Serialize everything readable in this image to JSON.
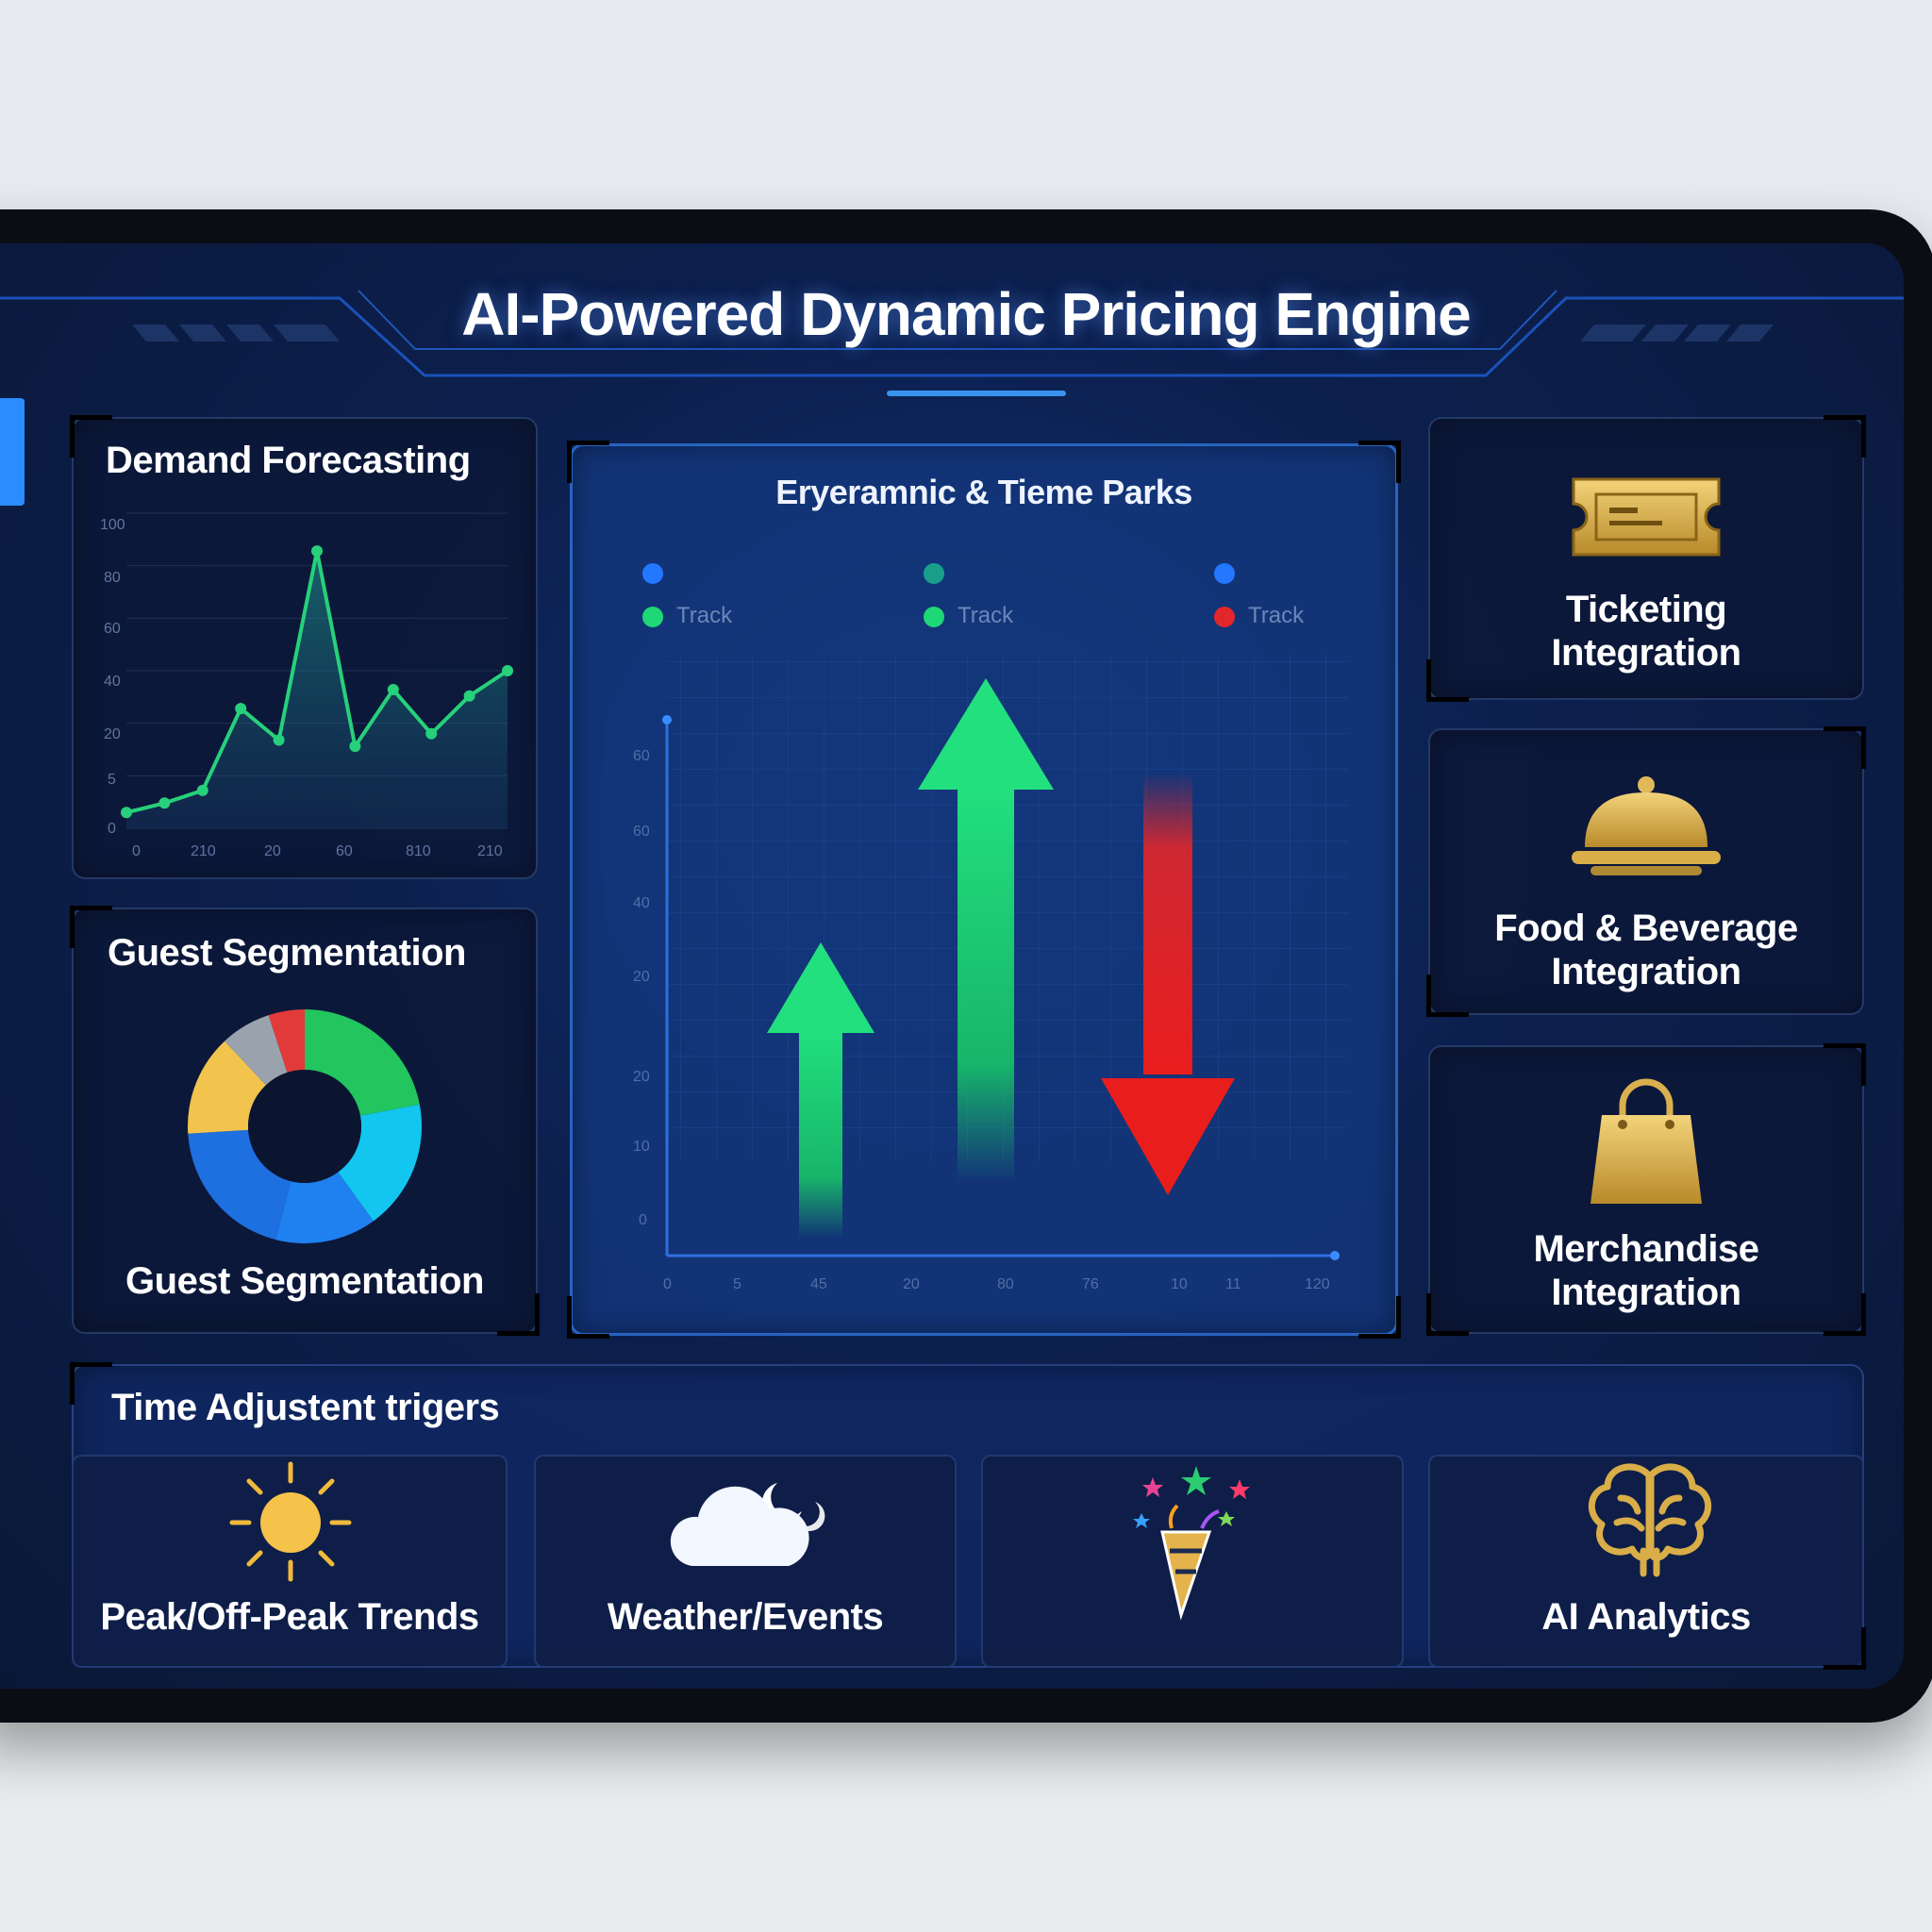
{
  "app": {
    "title": "AI-Powered Dynamic Pricing Engine"
  },
  "demand_forecasting": {
    "title": "Demand Forecasting",
    "y_ticks": [
      "100",
      "80",
      "60",
      "40",
      "20",
      "5",
      "0"
    ],
    "x_ticks": [
      "0",
      "210",
      "20",
      "60",
      "810",
      "210"
    ]
  },
  "guest_segmentation": {
    "title": "Guest Segmentation",
    "caption": "Guest Segmentation"
  },
  "center_chart": {
    "title": "Eryeramnic & Tieme Parks",
    "legend": [
      {
        "label": "Track",
        "color": "#1ed776"
      },
      {
        "label": "Track",
        "color": "#1ed776"
      },
      {
        "label": "Track",
        "color": "#e3262a"
      }
    ],
    "y_ticks": [
      "60",
      "60",
      "40",
      "20",
      "20",
      "10",
      "0"
    ],
    "x_ticks": [
      "0",
      "5",
      "45",
      "20",
      "80",
      "76",
      "10",
      "11",
      "120"
    ]
  },
  "integrations": [
    {
      "label_line1": "Ticketing",
      "label_line2": "Integration",
      "icon": "ticket-icon"
    },
    {
      "label_line1": "Food & Beverage",
      "label_line2": "Integration",
      "icon": "cloche-icon"
    },
    {
      "label_line1": "Merchandise",
      "label_line2": "Integration",
      "icon": "shopping-bag-icon"
    }
  ],
  "triggers": {
    "title": "Time Adjustent trigers",
    "items": [
      {
        "label": "Peak/Off-Peak Trends",
        "icon": "sun-icon"
      },
      {
        "label": "Weather/Events",
        "icon": "cloud-moon-icon"
      },
      {
        "label": "",
        "icon": "party-popper-icon"
      },
      {
        "label": "AI Analytics",
        "icon": "brain-icon"
      }
    ]
  },
  "chart_data": [
    {
      "type": "area",
      "title": "Demand Forecasting",
      "x": [
        0,
        1,
        2,
        3,
        4,
        5,
        6,
        7,
        8,
        9,
        10
      ],
      "values": [
        5,
        8,
        12,
        38,
        28,
        88,
        26,
        44,
        30,
        42,
        50
      ],
      "ylim": [
        0,
        100
      ],
      "color": "#27d07a"
    },
    {
      "type": "pie",
      "title": "Guest Segmentation",
      "values": [
        22,
        18,
        14,
        20,
        14,
        7,
        5
      ],
      "colors": [
        "#22c55e",
        "#12c6ef",
        "#1f80f0",
        "#1e6fe0",
        "#f2c44d",
        "#9aa3ad",
        "#e23a3a"
      ]
    }
  ],
  "colors": {
    "accent_green": "#27d07a",
    "accent_red": "#e3262a",
    "gold": "#d8b453",
    "panel_bg": "#0c1838"
  }
}
